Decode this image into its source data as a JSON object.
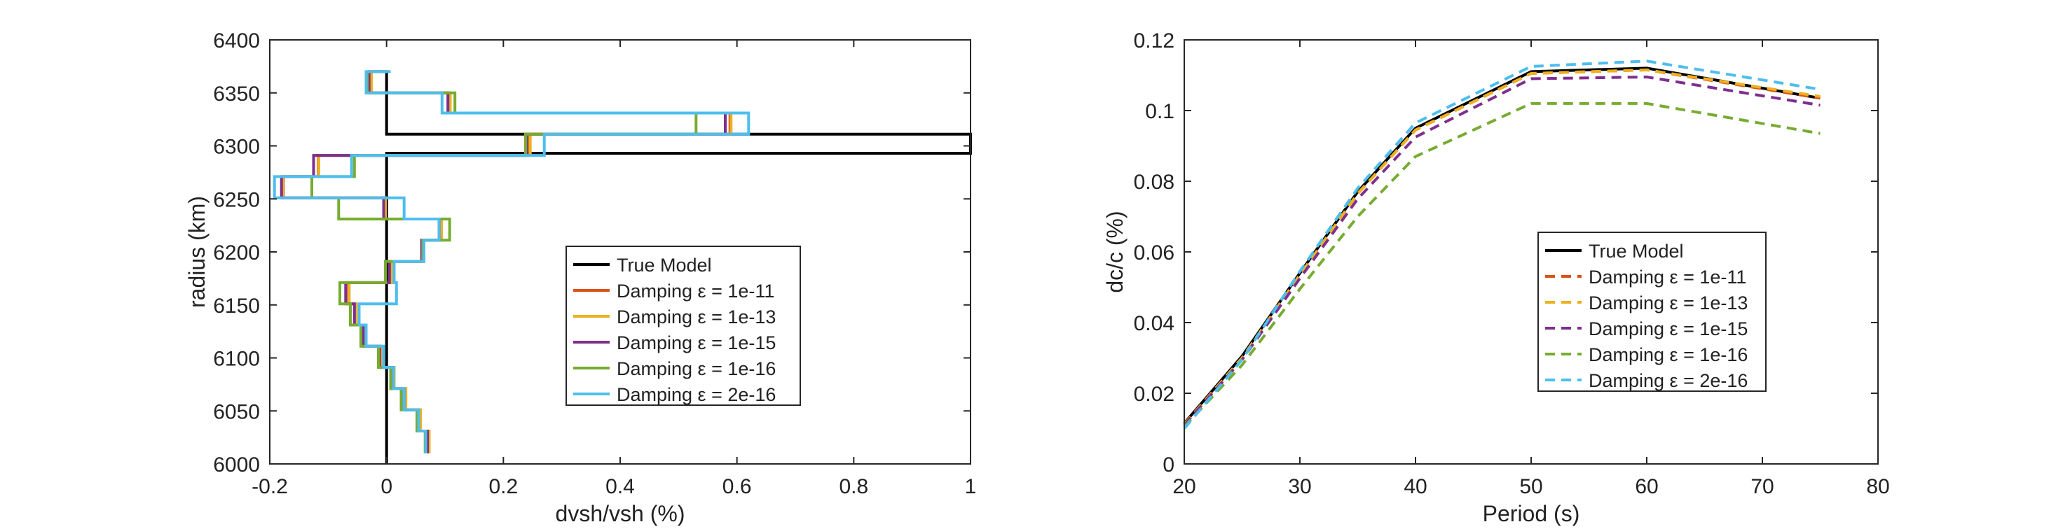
{
  "chart_data": [
    {
      "type": "line",
      "xlabel": "dvsh/vsh (%)",
      "ylabel": "radius (km)",
      "xlim": [
        -0.2,
        1
      ],
      "ylim": [
        6000,
        6400
      ],
      "xticks": [
        -0.2,
        0,
        0.2,
        0.4,
        0.6,
        0.8,
        1
      ],
      "yticks": [
        6000,
        6050,
        6100,
        6150,
        6200,
        6250,
        6300,
        6350,
        6400
      ],
      "xtick_labels": [
        "-0.2",
        "0",
        "0.2",
        "0.4",
        "0.6",
        "0.8",
        "1"
      ],
      "ytick_labels": [
        "6000",
        "6050",
        "6100",
        "6150",
        "6200",
        "6250",
        "6300",
        "6350",
        "6400"
      ],
      "grid": false,
      "legend_position": "center-right",
      "series": [
        {
          "name": "True Model",
          "color": "#000000",
          "x": [
            0,
            0,
            1.0,
            1.0,
            0,
            0
          ],
          "y": [
            6000,
            6293,
            6293,
            6311,
            6311,
            6370
          ]
        },
        {
          "name": "Damping ε = 1e-11",
          "color": "#D95319",
          "x": [
            0.072,
            0.072,
            0.057,
            0.057,
            0.032,
            0.032,
            0.012,
            0.012,
            -0.01,
            -0.01,
            -0.038,
            -0.038,
            -0.053,
            -0.053,
            -0.065,
            -0.065,
            0.008,
            0.008,
            0.063,
            0.063,
            0.093,
            0.093,
            -0.003,
            -0.003,
            -0.177,
            -0.177,
            -0.117,
            -0.117,
            0.245,
            0.245,
            0.588,
            0.588,
            0.108,
            0.108,
            -0.027,
            -0.027,
            0.003,
            0.003
          ],
          "y": [
            6010,
            6031,
            6031,
            6051,
            6051,
            6071,
            6071,
            6091,
            6091,
            6111,
            6111,
            6131,
            6131,
            6151,
            6151,
            6171,
            6171,
            6191,
            6191,
            6211,
            6211,
            6231,
            6231,
            6251,
            6251,
            6271,
            6271,
            6291,
            6291,
            6311,
            6311,
            6331,
            6331,
            6350,
            6350,
            6370,
            6370,
            6370
          ]
        },
        {
          "name": "Damping ε = 1e-13",
          "color": "#EDB120",
          "x": [
            0.073,
            0.073,
            0.058,
            0.058,
            0.033,
            0.033,
            0.013,
            0.013,
            -0.009,
            -0.009,
            -0.037,
            -0.037,
            -0.052,
            -0.052,
            -0.064,
            -0.064,
            0.009,
            0.009,
            0.064,
            0.064,
            0.094,
            0.094,
            -0.002,
            -0.002,
            -0.178,
            -0.178,
            -0.116,
            -0.116,
            0.246,
            0.246,
            0.59,
            0.59,
            0.109,
            0.109,
            -0.026,
            -0.026,
            0.004,
            0.004
          ],
          "y": [
            6010,
            6031,
            6031,
            6051,
            6051,
            6071,
            6071,
            6091,
            6091,
            6111,
            6111,
            6131,
            6131,
            6151,
            6151,
            6171,
            6171,
            6191,
            6191,
            6211,
            6211,
            6231,
            6231,
            6251,
            6251,
            6271,
            6271,
            6291,
            6291,
            6311,
            6311,
            6331,
            6331,
            6350,
            6350,
            6370,
            6370,
            6370
          ]
        },
        {
          "name": "Damping ε = 1e-15",
          "color": "#7E2F8E",
          "x": [
            0.07,
            0.07,
            0.055,
            0.055,
            0.03,
            0.03,
            0.01,
            0.01,
            -0.012,
            -0.012,
            -0.04,
            -0.04,
            -0.055,
            -0.055,
            -0.07,
            -0.07,
            0.005,
            0.005,
            0.06,
            0.06,
            0.09,
            0.09,
            -0.005,
            -0.005,
            -0.18,
            -0.18,
            -0.125,
            -0.125,
            0.24,
            0.24,
            0.58,
            0.58,
            0.105,
            0.105,
            -0.03,
            -0.03,
            0.001,
            0.001
          ],
          "y": [
            6010,
            6031,
            6031,
            6051,
            6051,
            6071,
            6071,
            6091,
            6091,
            6111,
            6111,
            6131,
            6131,
            6151,
            6151,
            6171,
            6171,
            6191,
            6191,
            6211,
            6211,
            6231,
            6231,
            6251,
            6251,
            6271,
            6271,
            6291,
            6291,
            6311,
            6311,
            6331,
            6331,
            6350,
            6350,
            6370,
            6370,
            6370
          ]
        },
        {
          "name": "Damping ε = 1e-16",
          "color": "#77AC30",
          "x": [
            0.066,
            0.066,
            0.052,
            0.052,
            0.025,
            0.025,
            0.007,
            0.007,
            -0.014,
            -0.014,
            -0.044,
            -0.044,
            -0.062,
            -0.062,
            -0.08,
            -0.08,
            -0.002,
            -0.002,
            0.062,
            0.062,
            0.108,
            0.108,
            -0.082,
            -0.082,
            -0.128,
            -0.128,
            -0.055,
            -0.055,
            0.238,
            0.238,
            0.53,
            0.53,
            0.117,
            0.117,
            -0.033,
            -0.033,
            0.004,
            0.004
          ],
          "y": [
            6010,
            6031,
            6031,
            6051,
            6051,
            6071,
            6071,
            6091,
            6091,
            6111,
            6111,
            6131,
            6131,
            6151,
            6151,
            6171,
            6171,
            6191,
            6191,
            6211,
            6211,
            6231,
            6231,
            6251,
            6251,
            6271,
            6271,
            6291,
            6291,
            6311,
            6311,
            6331,
            6331,
            6350,
            6350,
            6370,
            6370,
            6370
          ]
        },
        {
          "name": "Damping ε = 2e-16",
          "color": "#4DBEEE",
          "x": [
            0.067,
            0.067,
            0.055,
            0.055,
            0.03,
            0.03,
            0.012,
            0.012,
            -0.005,
            -0.005,
            -0.035,
            -0.035,
            -0.047,
            -0.047,
            0.017,
            0.017,
            0.013,
            0.013,
            0.064,
            0.064,
            0.09,
            0.09,
            0.03,
            0.03,
            -0.192,
            -0.192,
            -0.06,
            -0.06,
            0.27,
            0.27,
            0.62,
            0.62,
            0.095,
            0.095,
            -0.035,
            -0.035,
            0.007,
            0.007
          ],
          "y": [
            6010,
            6031,
            6031,
            6051,
            6051,
            6071,
            6071,
            6091,
            6091,
            6111,
            6111,
            6131,
            6131,
            6151,
            6151,
            6171,
            6171,
            6191,
            6191,
            6211,
            6211,
            6231,
            6231,
            6251,
            6251,
            6271,
            6271,
            6291,
            6291,
            6311,
            6311,
            6331,
            6331,
            6350,
            6350,
            6370,
            6370,
            6370
          ]
        }
      ]
    },
    {
      "type": "line",
      "xlabel": "Period (s)",
      "ylabel": "dc/c (%)",
      "xlim": [
        20,
        80
      ],
      "ylim": [
        0,
        0.12
      ],
      "xticks": [
        20,
        30,
        40,
        50,
        60,
        70,
        80
      ],
      "yticks": [
        0,
        0.02,
        0.04,
        0.06,
        0.08,
        0.1,
        0.12
      ],
      "xtick_labels": [
        "20",
        "30",
        "40",
        "50",
        "60",
        "70",
        "80"
      ],
      "ytick_labels": [
        "0",
        "0.02",
        "0.04",
        "0.06",
        "0.08",
        "0.1",
        "0.12"
      ],
      "grid": false,
      "legend_position": "lower-right",
      "x": [
        20,
        25,
        30,
        35,
        40,
        50,
        60,
        75
      ],
      "series": [
        {
          "name": "True Model",
          "color": "#000000",
          "dashed": false,
          "values": [
            0.0115,
            0.0305,
            0.054,
            0.077,
            0.095,
            0.111,
            0.112,
            0.1035
          ]
        },
        {
          "name": "Damping ε = 1e-11",
          "color": "#D95319",
          "dashed": true,
          "values": [
            0.0112,
            0.03,
            0.0535,
            0.0765,
            0.0945,
            0.1105,
            0.1115,
            0.1035
          ]
        },
        {
          "name": "Damping ε = 1e-13",
          "color": "#EDB120",
          "dashed": true,
          "values": [
            0.0112,
            0.03,
            0.0535,
            0.0765,
            0.0945,
            0.1105,
            0.1115,
            0.104
          ]
        },
        {
          "name": "Damping ε = 1e-15",
          "color": "#7E2F8E",
          "dashed": true,
          "values": [
            0.011,
            0.0295,
            0.0525,
            0.075,
            0.0925,
            0.109,
            0.1095,
            0.1015
          ]
        },
        {
          "name": "Damping ε = 1e-16",
          "color": "#77AC30",
          "dashed": true,
          "values": [
            0.0105,
            0.028,
            0.0495,
            0.07,
            0.087,
            0.102,
            0.102,
            0.0935
          ]
        },
        {
          "name": "Damping ε = 2e-16",
          "color": "#4DBEEE",
          "dashed": true,
          "values": [
            0.01,
            0.0295,
            0.0545,
            0.078,
            0.0965,
            0.1125,
            0.114,
            0.106
          ]
        }
      ]
    }
  ]
}
